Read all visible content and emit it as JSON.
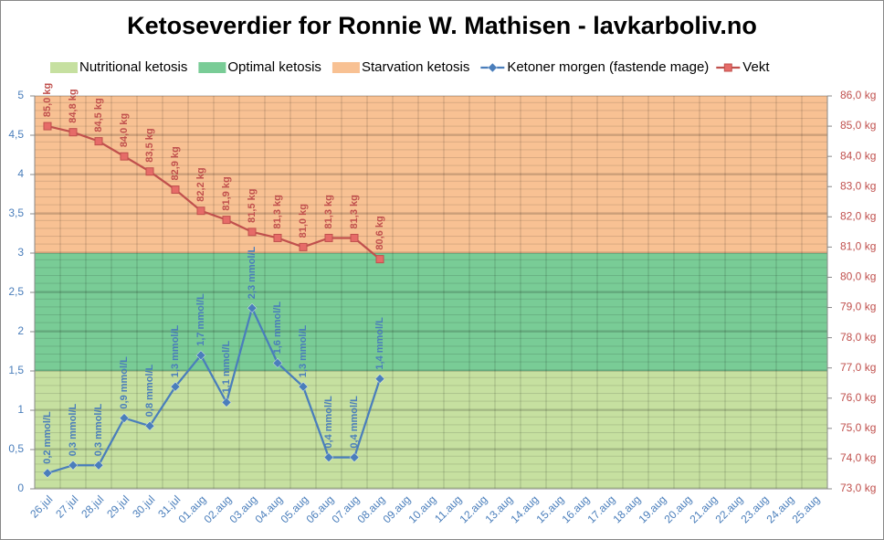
{
  "chart_data": {
    "type": "line",
    "title": "Ketoseverdier for Ronnie W. Mathisen - lavkarboliv.no",
    "categories": [
      "26.jul",
      "27.jul",
      "28.jul",
      "29.jul",
      "30.jul",
      "31.jul",
      "01.aug",
      "02.aug",
      "03.aug",
      "04.aug",
      "05.aug",
      "06.aug",
      "07.aug",
      "08.aug",
      "09.aug",
      "10.aug",
      "11.aug",
      "12.aug",
      "13.aug",
      "14.aug",
      "15.aug",
      "16.aug",
      "17.aug",
      "18.aug",
      "19.aug",
      "20.aug",
      "21.aug",
      "22.aug",
      "23.aug",
      "24.aug",
      "25.aug"
    ],
    "bands": [
      {
        "name": "Nutritional ketosis",
        "color": "#c6e0a0",
        "from": 0,
        "to": 1.5
      },
      {
        "name": "Optimal ketosis",
        "color": "#79cc96",
        "from": 1.5,
        "to": 3
      },
      {
        "name": "Starvation ketosis",
        "color": "#f8c193",
        "from": 3,
        "to": 5
      }
    ],
    "series": [
      {
        "name": "Ketoner morgen (fastende mage)",
        "color": "#4a7ebb",
        "marker": "diamond",
        "values": [
          0.2,
          0.3,
          0.3,
          0.9,
          0.8,
          1.3,
          1.7,
          1.1,
          2.3,
          1.6,
          1.3,
          0.4,
          0.4,
          1.4,
          null,
          null,
          null,
          null,
          null,
          null,
          null,
          null,
          null,
          null,
          null,
          null,
          null,
          null,
          null,
          null,
          null
        ],
        "value_labels": [
          "0,2 mmol/L",
          "0,3 mmol/L",
          "0,3 mmol/L",
          "0,9 mmol/L",
          "0,8 mmol/L",
          "1,3 mmol/L",
          "1,7 mmol/L",
          "1,1 mmol/L",
          "2,3 mmol/L",
          "1,6 mmol/L",
          "1,3 mmol/L",
          "0,4 mmol/L",
          "0,4 mmol/L",
          "1,4 mmol/L",
          null,
          null,
          null,
          null,
          null,
          null,
          null,
          null,
          null,
          null,
          null,
          null,
          null,
          null,
          null,
          null,
          null
        ]
      },
      {
        "name": "Vekt",
        "color": "#c0504d",
        "marker": "square",
        "axis": "y2",
        "values": [
          85.0,
          84.8,
          84.5,
          84.0,
          83.5,
          82.9,
          82.2,
          81.9,
          81.5,
          81.3,
          81.0,
          81.3,
          81.3,
          80.6,
          null,
          null,
          null,
          null,
          null,
          null,
          null,
          null,
          null,
          null,
          null,
          null,
          null,
          null,
          null,
          null,
          null
        ],
        "value_labels": [
          "85,0 kg",
          "84,8 kg",
          "84,5 kg",
          "84,0 kg",
          "83,5 kg",
          "82,9 kg",
          "82,2 kg",
          "81,9 kg",
          "81,5 kg",
          "81,3 kg",
          "81,0 kg",
          "81,3 kg",
          "81,3 kg",
          "80,6 kg",
          null,
          null,
          null,
          null,
          null,
          null,
          null,
          null,
          null,
          null,
          null,
          null,
          null,
          null,
          null,
          null,
          null
        ]
      }
    ],
    "ylim": [
      0,
      5
    ],
    "yticks": [
      0,
      {
        "value": 0.5,
        "label": "0,5"
      },
      1,
      {
        "value": 1.5,
        "label": "1,5"
      },
      2,
      {
        "value": 2.5,
        "label": "2,5"
      },
      3,
      {
        "value": 3.5,
        "label": "3,5"
      },
      4,
      {
        "value": 4.5,
        "label": "4,5"
      },
      5
    ],
    "y2lim": [
      73,
      86
    ],
    "y2ticks": [
      {
        "value": 73,
        "label": "73,0 kg"
      },
      {
        "value": 74,
        "label": "74,0 kg"
      },
      {
        "value": 75,
        "label": "75,0 kg"
      },
      {
        "value": 76,
        "label": "76,0 kg"
      },
      {
        "value": 77,
        "label": "77,0 kg"
      },
      {
        "value": 78,
        "label": "78,0 kg"
      },
      {
        "value": 79,
        "label": "79,0 kg"
      },
      {
        "value": 80,
        "label": "80,0 kg"
      },
      {
        "value": 81,
        "label": "81,0 kg"
      },
      {
        "value": 82,
        "label": "82,0 kg"
      },
      {
        "value": 83,
        "label": "83,0 kg"
      },
      {
        "value": 84,
        "label": "84,0 kg"
      },
      {
        "value": 85,
        "label": "85,0 kg"
      },
      {
        "value": 86,
        "label": "86,0 kg"
      }
    ],
    "grid": true,
    "legend": "top"
  }
}
